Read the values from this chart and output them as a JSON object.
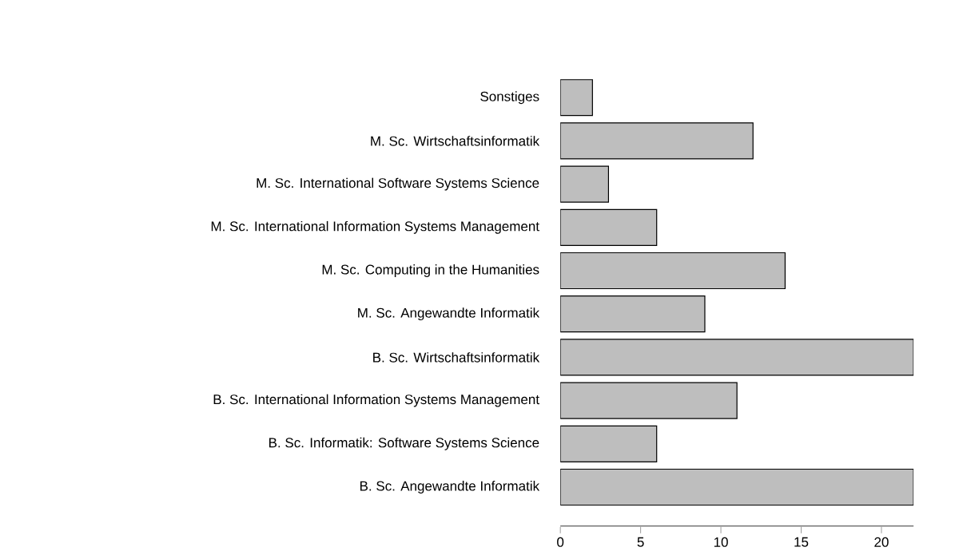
{
  "chart_data": {
    "type": "bar",
    "orientation": "horizontal",
    "categories": [
      "Sonstiges",
      "M. Sc. Wirtschaftsinformatik",
      "M. Sc. International Software Systems Science",
      "M. Sc. International Information Systems Management",
      "M. Sc. Computing in the Humanities",
      "M. Sc. Angewandte Informatik",
      "B. Sc. Wirtschaftsinformatik",
      "B. Sc. International Information Systems Management",
      "B. Sc. Informatik: Software Systems Science",
      "B. Sc. Angewandte Informatik"
    ],
    "values": [
      2,
      12,
      3,
      6,
      14,
      9,
      22,
      11,
      6,
      22
    ],
    "color": "#bebebe",
    "xlim": [
      0,
      22
    ],
    "xticks": [
      0,
      5,
      10,
      15,
      20
    ]
  }
}
